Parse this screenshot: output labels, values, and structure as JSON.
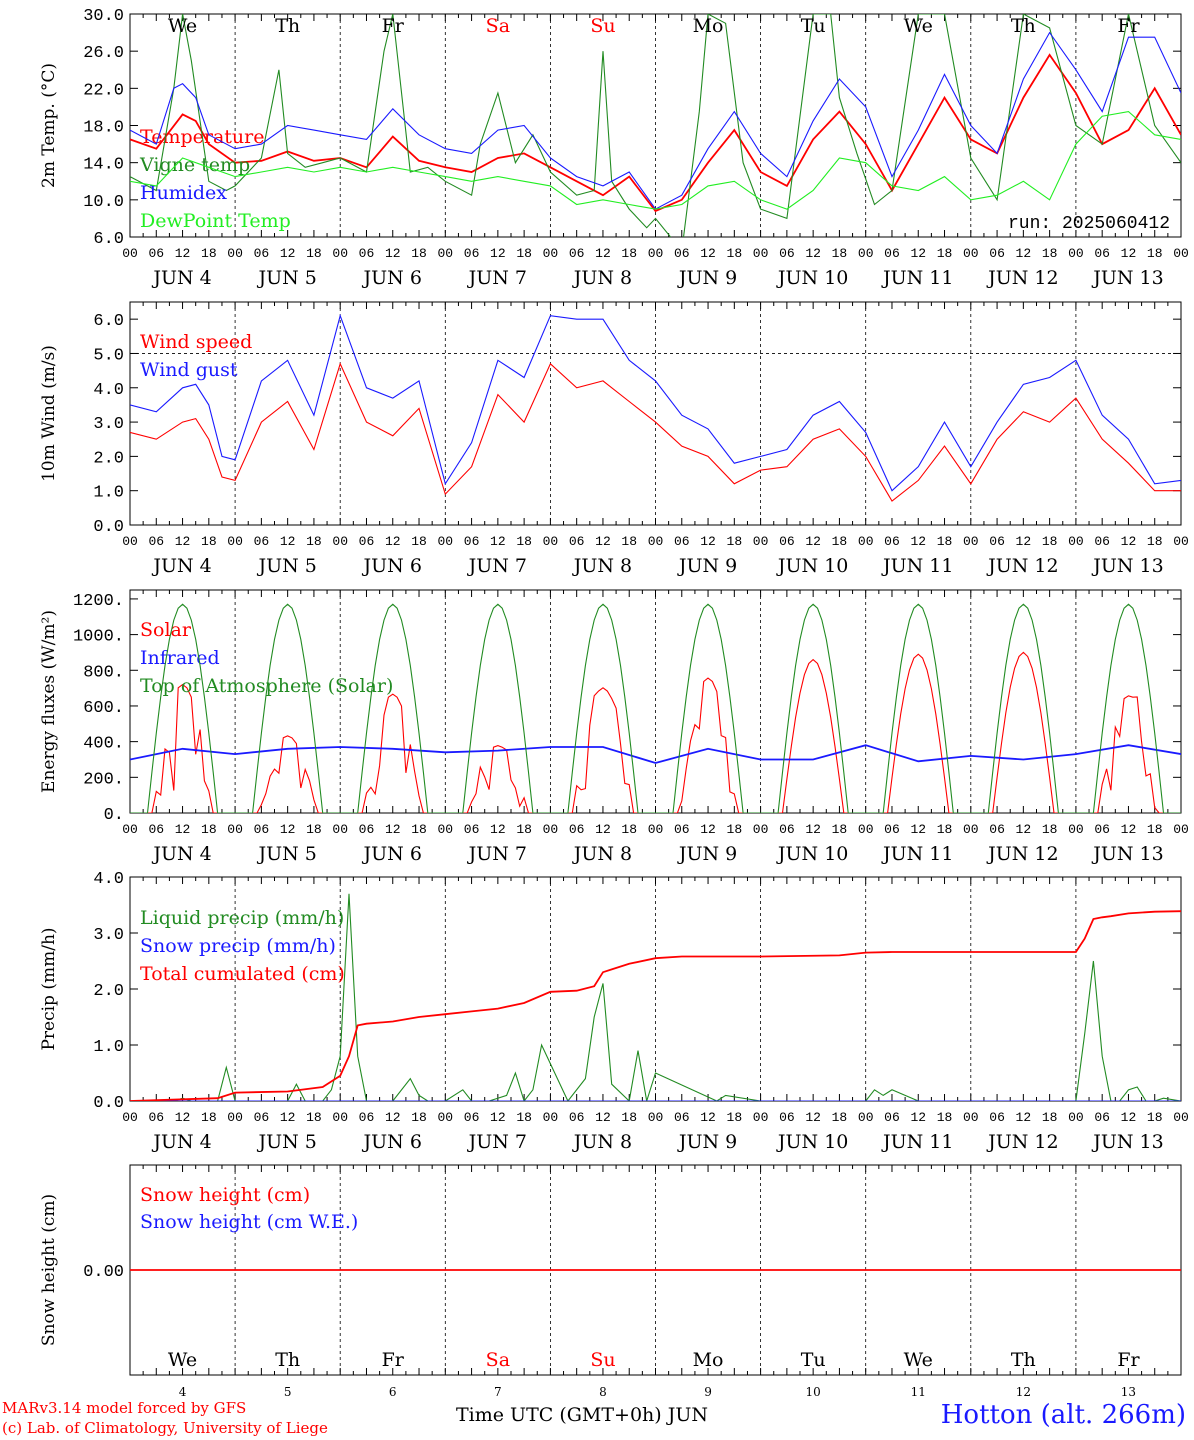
{
  "run_label": "run: 2025060412",
  "days": [
    "We",
    "Th",
    "Fr",
    "Sa",
    "Su",
    "Mo",
    "Tu",
    "We",
    "Th",
    "Fr"
  ],
  "day_colors": [
    "#000000",
    "#000000",
    "#000000",
    "#ff0000",
    "#ff0000",
    "#000000",
    "#000000",
    "#000000",
    "#000000",
    "#000000"
  ],
  "dates": [
    "4",
    "5",
    "6",
    "7",
    "8",
    "9",
    "10",
    "11",
    "12",
    "13"
  ],
  "hour_ticks": [
    "00",
    "06",
    "12",
    "18"
  ],
  "month": "JUN",
  "footer": {
    "model": "MARv3.14 model forced by GFS",
    "lab": "(c) Lab. of Climatology, University of Liege",
    "time_axis": "Time UTC (GMT+0h) JUN",
    "station": "Hotton (alt. 266m)"
  },
  "chart_data": [
    {
      "type": "line",
      "ylabel": "2m Temp. (°C)",
      "ylim": [
        6,
        30
      ],
      "yticks": [
        "30.0",
        "26.0",
        "22.0",
        "18.0",
        "14.0",
        "10.0",
        "6.0"
      ],
      "x_unit": "hours since JUN 4 00 UTC",
      "series": [
        {
          "name": "Temperature",
          "color": "#ff0000",
          "x": [
            0,
            6,
            12,
            15,
            18,
            24,
            30,
            36,
            42,
            48,
            54,
            60,
            66,
            72,
            78,
            84,
            90,
            96,
            102,
            108,
            114,
            120,
            126,
            132,
            138,
            144,
            150,
            156,
            162,
            168,
            174,
            180,
            186,
            192,
            198,
            204,
            210,
            216,
            222,
            228,
            234,
            240
          ],
          "y": [
            16.5,
            15.5,
            19.2,
            18.5,
            16.0,
            14.0,
            14.2,
            15.2,
            14.2,
            14.5,
            13.5,
            16.8,
            14.2,
            13.5,
            13.0,
            14.5,
            15.0,
            13.5,
            12.0,
            10.5,
            12.5,
            8.8,
            10.0,
            14.0,
            17.5,
            13.0,
            11.5,
            16.5,
            19.5,
            16.0,
            11.0,
            16.0,
            21.0,
            16.5,
            15.0,
            21.0,
            25.6,
            21.5,
            16.0,
            17.5,
            22.0,
            17.0
          ]
        },
        {
          "name": "Vigne temp",
          "color": "#228b22",
          "x": [
            0,
            6,
            10,
            12,
            14,
            18,
            22,
            24,
            30,
            34,
            36,
            40,
            44,
            48,
            54,
            58,
            60,
            64,
            68,
            72,
            78,
            80,
            84,
            88,
            92,
            96,
            102,
            106,
            108,
            110,
            114,
            118,
            120,
            126,
            130,
            132,
            136,
            140,
            144,
            150,
            156,
            160,
            162,
            166,
            170,
            174,
            180,
            186,
            192,
            198,
            204,
            210,
            216,
            222,
            228,
            234,
            240
          ],
          "y": [
            12.5,
            11.0,
            22.0,
            30.0,
            25.0,
            12.0,
            11.0,
            11.5,
            14.5,
            24.0,
            15.0,
            13.5,
            14.0,
            14.5,
            13.0,
            26.0,
            30.0,
            13.0,
            13.5,
            12.0,
            10.5,
            16.0,
            21.5,
            14.0,
            17.0,
            13.0,
            10.5,
            11.0,
            26.0,
            12.0,
            9.0,
            7.0,
            8.0,
            4.5,
            19.5,
            30.0,
            29.0,
            14.0,
            9.0,
            8.0,
            30.0,
            30.0,
            21.0,
            15.0,
            9.5,
            11.0,
            30.0,
            30.0,
            14.5,
            10.0,
            30.0,
            28.5,
            18.0,
            16.0,
            30.0,
            18.0,
            14.0
          ]
        },
        {
          "name": "Humidex",
          "color": "#1a1aff",
          "x": [
            0,
            6,
            10,
            12,
            15,
            18,
            24,
            30,
            36,
            42,
            48,
            54,
            60,
            66,
            72,
            78,
            84,
            90,
            96,
            102,
            108,
            114,
            120,
            126,
            132,
            138,
            144,
            150,
            156,
            162,
            168,
            174,
            180,
            186,
            192,
            198,
            204,
            210,
            216,
            222,
            228,
            234,
            240
          ],
          "y": [
            17.5,
            16.0,
            22.0,
            22.5,
            21.0,
            17.0,
            15.5,
            16.0,
            18.0,
            17.5,
            17.0,
            16.5,
            19.8,
            17.0,
            15.5,
            15.0,
            17.5,
            18.0,
            14.5,
            12.5,
            11.5,
            13.0,
            9.0,
            10.5,
            15.5,
            19.5,
            15.0,
            12.5,
            18.5,
            23.0,
            20.0,
            12.5,
            17.5,
            23.5,
            18.0,
            15.0,
            23.0,
            28.0,
            24.0,
            19.5,
            27.5,
            27.5,
            21.5
          ]
        },
        {
          "name": "DewPoint Temp",
          "color": "#22ee22",
          "x": [
            0,
            6,
            12,
            18,
            24,
            30,
            36,
            42,
            48,
            54,
            60,
            66,
            72,
            78,
            84,
            90,
            96,
            102,
            108,
            114,
            120,
            126,
            132,
            138,
            144,
            150,
            156,
            162,
            168,
            174,
            180,
            186,
            192,
            198,
            204,
            210,
            216,
            222,
            228,
            234,
            240
          ],
          "y": [
            12.0,
            11.5,
            14.5,
            13.5,
            12.5,
            13.0,
            13.5,
            13.0,
            13.5,
            13.0,
            13.5,
            13.0,
            12.5,
            12.0,
            12.5,
            12.0,
            11.5,
            9.5,
            10.0,
            9.5,
            9.0,
            9.5,
            11.5,
            12.0,
            10.0,
            9.0,
            11.0,
            14.5,
            14.0,
            11.5,
            11.0,
            12.5,
            10.0,
            10.5,
            12.0,
            10.0,
            16.0,
            19.0,
            19.5,
            17.0,
            16.5
          ]
        }
      ]
    },
    {
      "type": "line",
      "ylabel": "10m Wind (m/s)",
      "ylim": [
        0,
        6.5
      ],
      "yticks": [
        "6.0",
        "5.0",
        "4.0",
        "3.0",
        "2.0",
        "1.0",
        "0.0"
      ],
      "reference_line": 5.0,
      "series": [
        {
          "name": "Wind speed",
          "color": "#ff0000",
          "x": [
            0,
            6,
            12,
            15,
            18,
            21,
            24,
            30,
            36,
            42,
            48,
            54,
            60,
            66,
            72,
            78,
            84,
            90,
            96,
            102,
            108,
            114,
            120,
            126,
            132,
            138,
            144,
            150,
            156,
            162,
            168,
            174,
            180,
            186,
            192,
            198,
            204,
            210,
            216,
            222,
            228,
            234,
            240
          ],
          "y": [
            2.7,
            2.5,
            3.0,
            3.1,
            2.5,
            1.4,
            1.3,
            3.0,
            3.6,
            2.2,
            4.7,
            3.0,
            2.6,
            3.4,
            0.9,
            1.7,
            3.8,
            3.0,
            4.7,
            4.0,
            4.2,
            3.6,
            3.0,
            2.3,
            2.0,
            1.2,
            1.6,
            1.7,
            2.5,
            2.8,
            2.0,
            0.7,
            1.3,
            2.3,
            1.2,
            2.5,
            3.3,
            3.0,
            3.7,
            2.5,
            1.8,
            1.0,
            1.0
          ]
        },
        {
          "name": "Wind gust",
          "color": "#1a1aff",
          "x": [
            0,
            6,
            12,
            15,
            18,
            21,
            24,
            30,
            36,
            42,
            48,
            54,
            60,
            66,
            72,
            78,
            84,
            90,
            96,
            102,
            108,
            114,
            120,
            126,
            132,
            138,
            144,
            150,
            156,
            162,
            168,
            174,
            180,
            186,
            192,
            198,
            204,
            210,
            216,
            222,
            228,
            234,
            240
          ],
          "y": [
            3.5,
            3.3,
            4.0,
            4.1,
            3.5,
            2.0,
            1.9,
            4.2,
            4.8,
            3.2,
            6.1,
            4.0,
            3.7,
            4.2,
            1.2,
            2.4,
            4.8,
            4.3,
            6.1,
            6.0,
            6.0,
            4.8,
            4.2,
            3.2,
            2.8,
            1.8,
            2.0,
            2.2,
            3.2,
            3.6,
            2.7,
            1.0,
            1.7,
            3.0,
            1.7,
            3.0,
            4.1,
            4.3,
            4.8,
            3.2,
            2.5,
            1.2,
            1.3
          ]
        }
      ]
    },
    {
      "type": "line",
      "ylabel": "Energy fluxes (W/m²)",
      "ylim": [
        0,
        1250
      ],
      "yticks": [
        "1200.",
        "1000.",
        "800.",
        "600.",
        "400.",
        "200.",
        "0."
      ],
      "series": [
        {
          "name": "Solar",
          "color": "#ff0000",
          "peaks": [
            800,
            480,
            740,
            420,
            780,
            840,
            860,
            890,
            900,
            730
          ],
          "x": [],
          "y": []
        },
        {
          "name": "Infrared",
          "color": "#1a1aff",
          "x": [
            0,
            12,
            24,
            36,
            48,
            60,
            72,
            84,
            96,
            108,
            120,
            132,
            144,
            156,
            168,
            180,
            192,
            204,
            216,
            228,
            240
          ],
          "y": [
            300,
            360,
            330,
            360,
            370,
            360,
            340,
            350,
            370,
            370,
            280,
            360,
            300,
            300,
            380,
            290,
            320,
            300,
            330,
            380,
            330
          ]
        },
        {
          "name": "Top of Atmosphere (Solar)",
          "color": "#228b22",
          "peak": 1170,
          "x": [],
          "y": []
        }
      ]
    },
    {
      "type": "line",
      "ylabel": "Precip (mm/h)",
      "ylim": [
        0,
        4.0
      ],
      "yticks": [
        "4.0",
        "3.0",
        "2.0",
        "1.0",
        "0.0"
      ],
      "series": [
        {
          "name": "Liquid precip (mm/h)",
          "color": "#228b22",
          "x": [
            0,
            10,
            12,
            14,
            20,
            22,
            24,
            26,
            28,
            36,
            38,
            40,
            44,
            46,
            48,
            50,
            52,
            54,
            56,
            60,
            64,
            66,
            68,
            72,
            76,
            78,
            82,
            86,
            88,
            90,
            92,
            94,
            100,
            104,
            106,
            108,
            110,
            114,
            116,
            118,
            120,
            134,
            136,
            144,
            168,
            170,
            172,
            174,
            180,
            216,
            218,
            220,
            222,
            224,
            226,
            228,
            230,
            232,
            234,
            236,
            240
          ],
          "y": [
            0,
            0,
            0.05,
            0,
            0,
            0.6,
            0,
            0,
            0,
            0,
            0.3,
            0,
            0,
            0.2,
            0.8,
            3.7,
            0.8,
            0,
            0,
            0,
            0.4,
            0.1,
            0,
            0,
            0.2,
            0,
            0,
            0.1,
            0.5,
            0,
            0.2,
            1.0,
            0,
            0.4,
            1.5,
            2.1,
            0.3,
            0,
            0.9,
            0,
            0.5,
            0,
            0.1,
            0,
            0,
            0.2,
            0.1,
            0.2,
            0,
            0,
            1.2,
            2.5,
            0.8,
            0,
            0,
            0.2,
            0.25,
            0,
            0,
            0.05,
            0
          ]
        },
        {
          "name": "Snow precip (mm/h)",
          "color": "#1a1aff",
          "x": [
            0,
            240
          ],
          "y": [
            0,
            0
          ]
        },
        {
          "name": "Total cumulated (cm)",
          "color": "#ff0000",
          "x": [
            0,
            20,
            24,
            36,
            44,
            48,
            50,
            52,
            54,
            60,
            66,
            72,
            78,
            84,
            90,
            96,
            102,
            106,
            108,
            110,
            114,
            120,
            126,
            144,
            162,
            168,
            174,
            180,
            204,
            216,
            218,
            220,
            222,
            224,
            228,
            234,
            240
          ],
          "y": [
            0,
            0.05,
            0.15,
            0.17,
            0.25,
            0.45,
            0.8,
            1.35,
            1.38,
            1.42,
            1.5,
            1.55,
            1.6,
            1.65,
            1.75,
            1.95,
            1.97,
            2.05,
            2.3,
            2.35,
            2.45,
            2.55,
            2.58,
            2.58,
            2.6,
            2.65,
            2.66,
            2.66,
            2.66,
            2.66,
            2.9,
            3.25,
            3.28,
            3.3,
            3.35,
            3.38,
            3.39
          ]
        }
      ]
    },
    {
      "type": "line",
      "ylabel": "Snow height (cm)",
      "ylim": [
        -1,
        1
      ],
      "yticks": [
        "0.00"
      ],
      "series": [
        {
          "name": "Snow height (cm)",
          "color": "#ff0000",
          "x": [
            0,
            240
          ],
          "y": [
            0,
            0
          ]
        },
        {
          "name": "Snow height (cm W.E.)",
          "color": "#1a1aff",
          "x": [],
          "y": []
        }
      ]
    }
  ]
}
